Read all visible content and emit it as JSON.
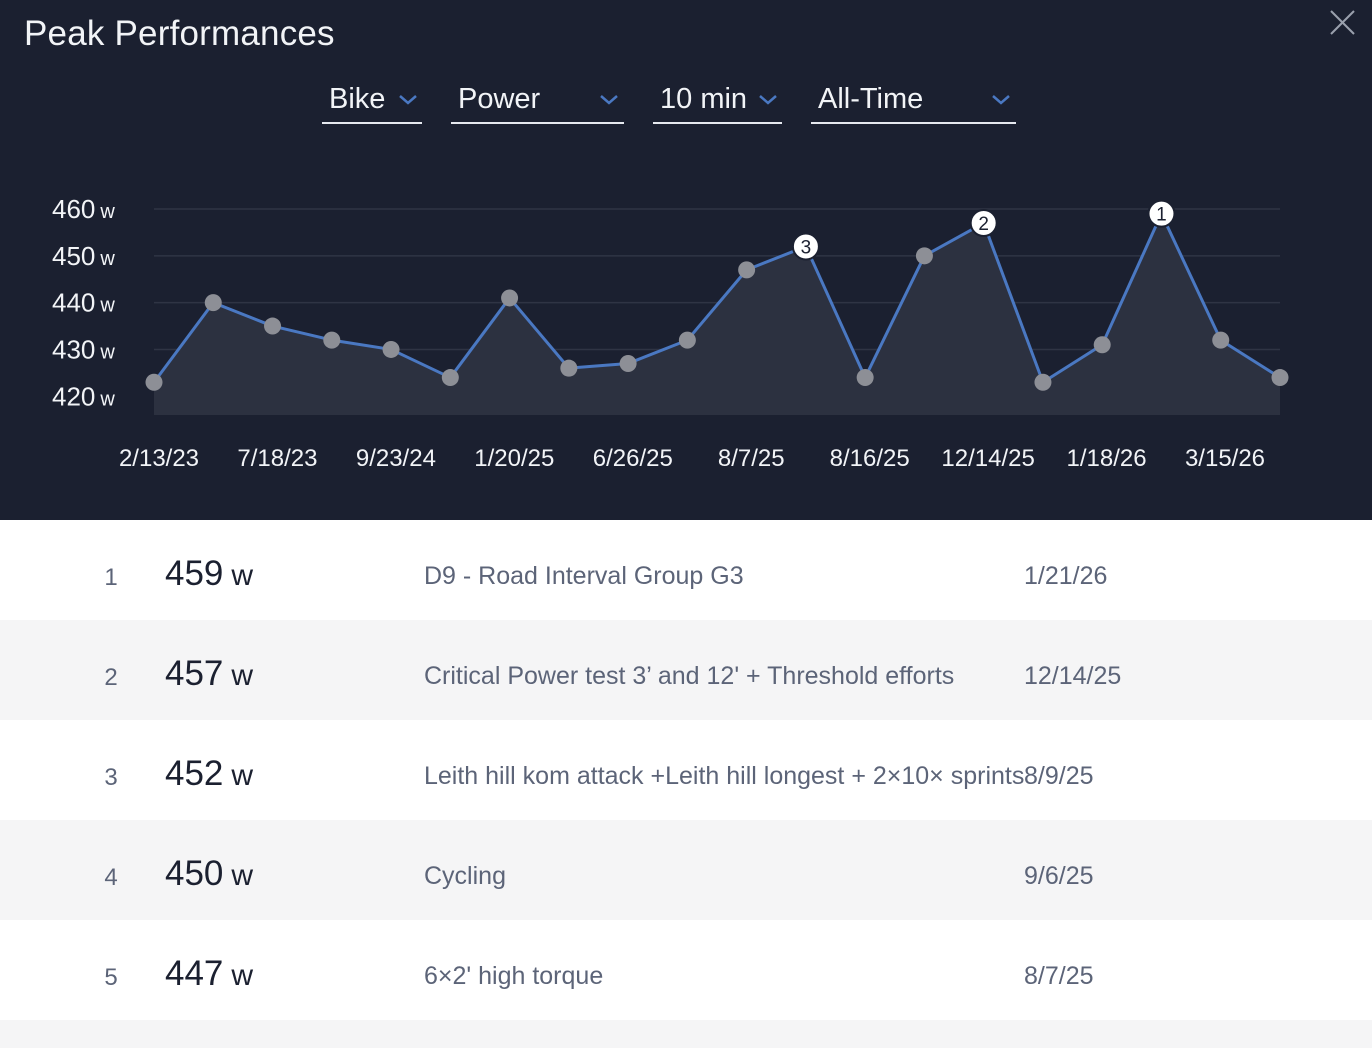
{
  "header": {
    "title": "Peak Performances",
    "close_icon": "close-icon"
  },
  "filters": {
    "sport": "Bike",
    "metric": "Power",
    "duration": "10 min",
    "range": "All-Time"
  },
  "colors": {
    "background": "#1b2030",
    "line": "#4a78c2",
    "point": "#8d8f96",
    "accent_text": "#f2f4f7",
    "row_alt": "#f5f5f6"
  },
  "chart_data": {
    "type": "area",
    "title": "",
    "ylabel": "",
    "xlabel": "",
    "ylim": [
      416,
      460
    ],
    "y_ticks": [
      {
        "value": 460,
        "label": "460",
        "unit": "w"
      },
      {
        "value": 450,
        "label": "450",
        "unit": "w"
      },
      {
        "value": 440,
        "label": "440",
        "unit": "w"
      },
      {
        "value": 430,
        "label": "430",
        "unit": "w"
      },
      {
        "value": 420,
        "label": "420",
        "unit": "w"
      }
    ],
    "x_tick_labels": [
      "2/13/23",
      "7/18/23",
      "9/23/24",
      "1/20/25",
      "6/26/25",
      "8/7/25",
      "8/16/25",
      "12/14/25",
      "1/18/26",
      "3/15/26"
    ],
    "series": [
      {
        "name": "10 min power",
        "values": [
          423,
          440,
          435,
          432,
          430,
          424,
          441,
          426,
          427,
          432,
          447,
          452,
          424,
          450,
          457,
          423,
          431,
          459,
          432,
          424
        ],
        "ranked": [
          {
            "index": 17,
            "rank": "1"
          },
          {
            "index": 14,
            "rank": "2"
          },
          {
            "index": 11,
            "rank": "3"
          }
        ]
      }
    ],
    "grid": true,
    "legend": "none"
  },
  "list": {
    "rows": [
      {
        "rank": "1",
        "value": "459",
        "unit": "w",
        "name": "D9 - Road Interval Group G3",
        "date": "1/21/26"
      },
      {
        "rank": "2",
        "value": "457",
        "unit": "w",
        "name": "Critical Power test 3’ and 12' + Threshold efforts",
        "date": "12/14/25"
      },
      {
        "rank": "3",
        "value": "452",
        "unit": "w",
        "name": "Leith hill kom attack +Leith hill longest + 2×10× sprints",
        "date": "8/9/25"
      },
      {
        "rank": "4",
        "value": "450",
        "unit": "w",
        "name": "Cycling",
        "date": "9/6/25"
      },
      {
        "rank": "5",
        "value": "447",
        "unit": "w",
        "name": "6×2' high torque",
        "date": "8/7/25"
      }
    ]
  }
}
